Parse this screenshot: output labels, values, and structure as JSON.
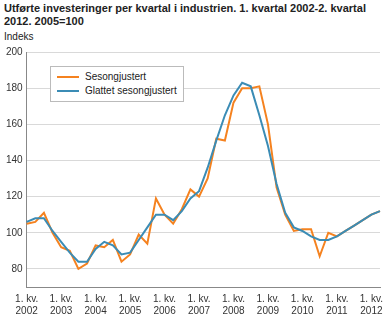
{
  "chart_data": {
    "type": "line",
    "title": "Utførte investeringer per kvartal i industrien. 1. kvartal 2002-2. kvartal 2012. 2005=100",
    "y_label": "Indeks",
    "categories": [
      "1. kv. 2002",
      null,
      null,
      null,
      "1. kv. 2003",
      null,
      null,
      null,
      "1. kv. 2004",
      null,
      null,
      null,
      "1. kv. 2005",
      null,
      null,
      null,
      "1. kv. 2006",
      null,
      null,
      null,
      "1. kv. 2007",
      null,
      null,
      null,
      "1. kv. 2008",
      null,
      null,
      null,
      "1. kv. 2009",
      null,
      null,
      null,
      "1. kv. 2010",
      null,
      null,
      null,
      "1. kv. 2011",
      null,
      null,
      null,
      "1. kv. 2012",
      null
    ],
    "series": [
      {
        "name": "Sesongjustert",
        "color": "#f5821f",
        "values": [
          105,
          106,
          111,
          100,
          92,
          90,
          80,
          83,
          93,
          92,
          96,
          84,
          88,
          99,
          94,
          119,
          110,
          105,
          113,
          124,
          120,
          130,
          152,
          151,
          172,
          180,
          180,
          181,
          160,
          125,
          110,
          101,
          102,
          102,
          87,
          100,
          98,
          101,
          104,
          107,
          110,
          112
        ]
      },
      {
        "name": "Glattet sesongjustert",
        "color": "#3b8cb5",
        "values": [
          106,
          108,
          108,
          101,
          95,
          89,
          84,
          84,
          91,
          95,
          93,
          88,
          89,
          96,
          103,
          110,
          110,
          107,
          112,
          119,
          123,
          136,
          151,
          165,
          176,
          183,
          181,
          165,
          148,
          127,
          111,
          103,
          101,
          98,
          96,
          96,
          98,
          101,
          104,
          107,
          110,
          112
        ]
      }
    ],
    "ylim": [
      70,
      200
    ],
    "yticks": [
      80,
      100,
      120,
      140,
      160,
      180,
      200
    ],
    "grid": true,
    "legend": "upper left"
  }
}
